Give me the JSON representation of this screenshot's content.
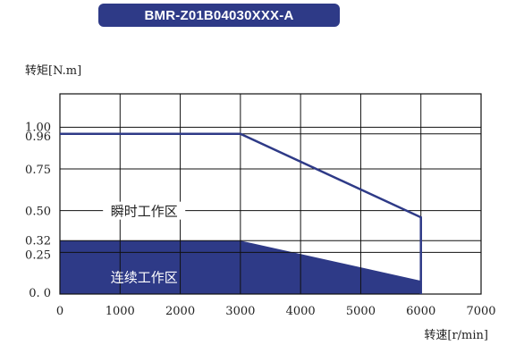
{
  "title": "BMR-Z01B04030XXX-A",
  "chart_data": {
    "type": "area",
    "ylabel": "转矩[N.m]",
    "xlabel": "转速[r/min]",
    "xlim": [
      0,
      7000
    ],
    "ylim": [
      0,
      1.2
    ],
    "grid": true,
    "x_ticks": [
      "0",
      "1000",
      "2000",
      "3000",
      "4000",
      "5000",
      "6000",
      "7000"
    ],
    "y_ticks": [
      {
        "value": 1.0,
        "label": "1.00"
      },
      {
        "value": 0.96,
        "label": "0.96"
      },
      {
        "value": 0.75,
        "label": "0.75"
      },
      {
        "value": 0.5,
        "label": "0.50"
      },
      {
        "value": 0.32,
        "label": "0.32"
      },
      {
        "value": 0.25,
        "label": "0.25"
      },
      {
        "value": 0.0,
        "label": "0. 0"
      }
    ],
    "series": [
      {
        "name": "瞬时工作区",
        "x": [
          0,
          3000,
          6000,
          6000
        ],
        "y": [
          0.96,
          0.96,
          0.46,
          0.0
        ]
      },
      {
        "name": "连续工作区",
        "x": [
          0,
          3000,
          6000,
          6000
        ],
        "y": [
          0.32,
          0.32,
          0.08,
          0.0
        ]
      }
    ],
    "annotations": [
      {
        "text": "瞬时工作区",
        "x": 1400,
        "y": 0.5
      },
      {
        "text": "连续工作区",
        "x": 1400,
        "y": 0.1
      }
    ],
    "colors": {
      "peak_line": "#2e3a87",
      "continuous_fill": "#2e3a87",
      "grid": "#111111"
    }
  }
}
